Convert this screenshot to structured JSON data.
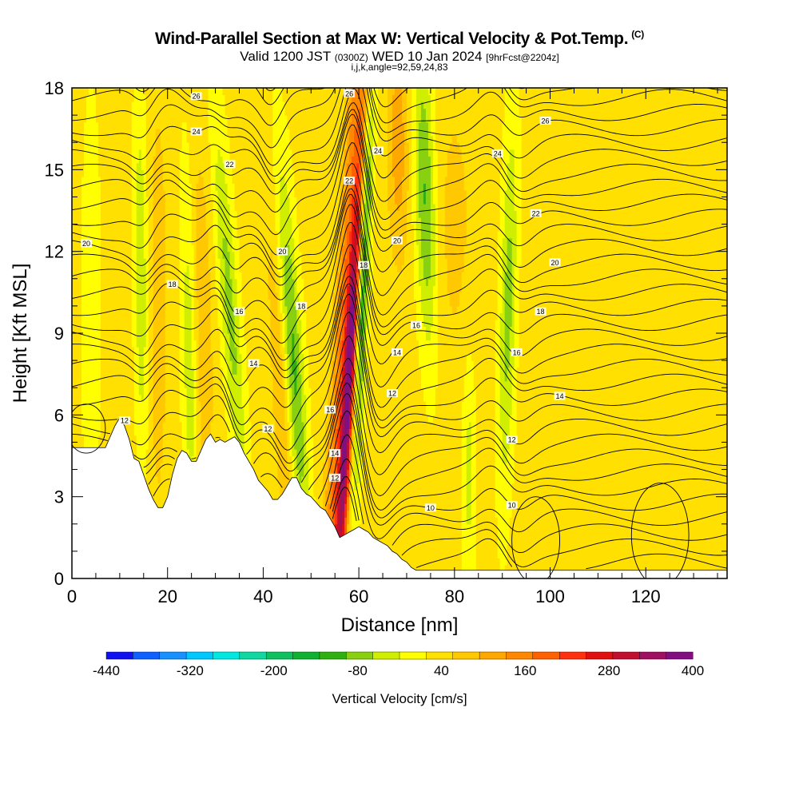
{
  "title": "Wind-Parallel Section at Max W: Vertical Velocity & Pot.Temp.",
  "title_mark": "(C)",
  "subtitle_main": "Valid 1200 JST",
  "subtitle_utc": "(0300Z)",
  "subtitle_date": "WED 10 Jan 2024",
  "subtitle_fcst": "[9hrFcst@2204z]",
  "params": "i,j,k,angle=92,59,24,83",
  "chart_data": {
    "type": "heatmap",
    "xlabel": "Distance [nm]",
    "ylabel": "Height [Kft MSL]",
    "xlim": [
      0,
      137
    ],
    "ylim": [
      0,
      18
    ],
    "x_ticks": [
      0,
      20,
      40,
      60,
      80,
      100,
      120
    ],
    "y_ticks": [
      0,
      3,
      6,
      9,
      12,
      15,
      18
    ],
    "x_minor_step": 5,
    "y_minor_step": 1,
    "colorbar": {
      "title": "Vertical Velocity [cm/s]",
      "tick_labels": [
        "-440",
        "-320",
        "-200",
        "-80",
        "40",
        "160",
        "280",
        "400"
      ],
      "tick_values": [
        -440,
        -320,
        -200,
        -80,
        40,
        160,
        280,
        400
      ],
      "min": -440,
      "max": 400,
      "step": 40,
      "colors": [
        "#1010f0",
        "#1060ff",
        "#1890ff",
        "#00c8ff",
        "#00e8e0",
        "#10d8a0",
        "#10c060",
        "#10b030",
        "#30b010",
        "#88d010",
        "#d0ee00",
        "#ffff00",
        "#ffe000",
        "#ffc800",
        "#ffa800",
        "#ff8800",
        "#ff6000",
        "#ff3010",
        "#e01010",
        "#c01030",
        "#a01060",
        "#801080"
      ]
    },
    "terrain": [
      [
        0,
        4.8
      ],
      [
        7,
        4.8
      ],
      [
        8,
        5.2
      ],
      [
        9,
        5.6
      ],
      [
        10,
        5.9
      ],
      [
        11,
        5.6
      ],
      [
        12,
        5.1
      ],
      [
        13,
        4.4
      ],
      [
        14,
        4.3
      ],
      [
        15,
        3.8
      ],
      [
        16,
        3.3
      ],
      [
        17,
        2.9
      ],
      [
        18,
        2.6
      ],
      [
        19,
        2.6
      ],
      [
        20,
        3.0
      ],
      [
        21,
        3.8
      ],
      [
        22,
        4.4
      ],
      [
        23,
        4.7
      ],
      [
        24,
        4.6
      ],
      [
        25,
        4.3
      ],
      [
        26,
        4.3
      ],
      [
        27,
        4.7
      ],
      [
        28,
        5.1
      ],
      [
        29,
        5.3
      ],
      [
        30,
        5.0
      ],
      [
        31,
        5.1
      ],
      [
        32,
        5.0
      ],
      [
        33,
        5.1
      ],
      [
        34,
        5.2
      ],
      [
        35,
        5.0
      ],
      [
        36,
        4.6
      ],
      [
        37,
        4.3
      ],
      [
        38,
        4.0
      ],
      [
        39,
        3.6
      ],
      [
        40,
        3.4
      ],
      [
        41,
        3.2
      ],
      [
        42,
        2.9
      ],
      [
        43,
        2.9
      ],
      [
        44,
        3.1
      ],
      [
        45,
        3.4
      ],
      [
        46,
        3.7
      ],
      [
        47,
        3.7
      ],
      [
        48,
        3.3
      ],
      [
        49,
        3.1
      ],
      [
        50,
        3.0
      ],
      [
        51,
        2.8
      ],
      [
        52,
        2.6
      ],
      [
        53,
        2.5
      ],
      [
        54,
        2.2
      ],
      [
        55,
        1.9
      ],
      [
        56,
        1.5
      ],
      [
        57,
        1.6
      ],
      [
        58,
        1.7
      ],
      [
        59,
        1.8
      ],
      [
        60,
        1.9
      ],
      [
        61,
        1.8
      ],
      [
        62,
        1.7
      ],
      [
        63,
        1.5
      ],
      [
        64,
        1.4
      ],
      [
        65,
        1.3
      ],
      [
        66,
        1.2
      ],
      [
        67,
        1.0
      ],
      [
        68,
        0.9
      ],
      [
        69,
        0.7
      ],
      [
        70,
        0.6
      ],
      [
        71,
        0.4
      ],
      [
        72,
        0.3
      ],
      [
        135,
        0.3
      ],
      [
        137,
        0.3
      ]
    ],
    "theta_contours": [
      10,
      12,
      14,
      16,
      18,
      20,
      22,
      24,
      26
    ],
    "contour_labels": [
      {
        "text": "26",
        "x": 26,
        "y": 17.7
      },
      {
        "text": "24",
        "x": 26,
        "y": 16.4
      },
      {
        "text": "22",
        "x": 33,
        "y": 15.2
      },
      {
        "text": "20",
        "x": 3,
        "y": 12.3
      },
      {
        "text": "20",
        "x": 44,
        "y": 12.0
      },
      {
        "text": "18",
        "x": 21,
        "y": 10.8
      },
      {
        "text": "18",
        "x": 48,
        "y": 10.0
      },
      {
        "text": "16",
        "x": 35,
        "y": 9.8
      },
      {
        "text": "14",
        "x": 38,
        "y": 7.9
      },
      {
        "text": "12",
        "x": 11,
        "y": 5.8
      },
      {
        "text": "12",
        "x": 41,
        "y": 5.5
      },
      {
        "text": "16",
        "x": 54,
        "y": 6.2
      },
      {
        "text": "14",
        "x": 55,
        "y": 4.6
      },
      {
        "text": "12",
        "x": 55,
        "y": 3.7
      },
      {
        "text": "26",
        "x": 58,
        "y": 17.8
      },
      {
        "text": "22",
        "x": 58,
        "y": 14.6
      },
      {
        "text": "24",
        "x": 64,
        "y": 15.7
      },
      {
        "text": "18",
        "x": 61,
        "y": 11.5
      },
      {
        "text": "20",
        "x": 68,
        "y": 12.4
      },
      {
        "text": "16",
        "x": 72,
        "y": 9.3
      },
      {
        "text": "14",
        "x": 68,
        "y": 8.3
      },
      {
        "text": "12",
        "x": 67,
        "y": 6.8
      },
      {
        "text": "10",
        "x": 75,
        "y": 2.6
      },
      {
        "text": "10",
        "x": 92,
        "y": 2.7
      },
      {
        "text": "26",
        "x": 99,
        "y": 16.8
      },
      {
        "text": "24",
        "x": 89,
        "y": 15.6
      },
      {
        "text": "22",
        "x": 97,
        "y": 13.4
      },
      {
        "text": "20",
        "x": 101,
        "y": 11.6
      },
      {
        "text": "18",
        "x": 98,
        "y": 9.8
      },
      {
        "text": "16",
        "x": 93,
        "y": 8.3
      },
      {
        "text": "14",
        "x": 102,
        "y": 6.7
      },
      {
        "text": "12",
        "x": 92,
        "y": 5.1
      }
    ]
  }
}
